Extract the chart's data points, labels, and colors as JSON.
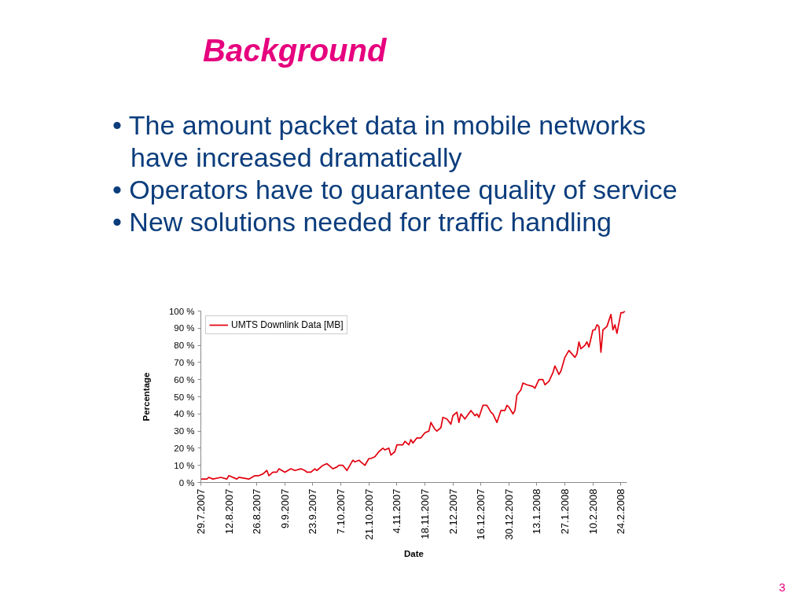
{
  "chart_data": {
    "type": "line",
    "title": "Background",
    "annotations": [
      "• The amount packet data in mobile networks\nhave increased dramatically",
      "• Operators have to guarantee quality of service",
      "• New solutions needed for traffic handling",
      "3"
    ],
    "xlabel": "Date",
    "ylabel": "Percentage",
    "x": [
      "2007-07-29",
      "2007-08-01",
      "2007-08-02",
      "2007-08-04",
      "2007-08-08",
      "2007-08-11",
      "2007-08-12",
      "2007-08-16",
      "2007-08-17",
      "2007-08-22",
      "2007-08-25",
      "2007-08-27",
      "2007-08-29",
      "2007-08-31",
      "2007-09-01",
      "2007-09-03",
      "2007-09-05",
      "2007-09-06",
      "2007-09-09",
      "2007-09-12",
      "2007-09-14",
      "2007-09-17",
      "2007-09-19",
      "2007-09-20",
      "2007-09-22",
      "2007-09-24",
      "2007-09-25",
      "2007-09-28",
      "2007-09-30",
      "2007-10-01",
      "2007-10-03",
      "2007-10-05",
      "2007-10-06",
      "2007-10-08",
      "2007-10-10",
      "2007-10-11",
      "2007-10-13",
      "2007-10-14",
      "2007-10-16",
      "2007-10-17",
      "2007-10-19",
      "2007-10-21",
      "2007-10-22",
      "2007-10-24",
      "2007-10-26",
      "2007-10-28",
      "2007-10-29",
      "2007-10-31",
      "2007-11-01",
      "2007-11-03",
      "2007-11-04",
      "2007-11-07",
      "2007-11-08",
      "2007-11-10",
      "2007-11-11",
      "2007-11-12",
      "2007-11-14",
      "2007-11-16",
      "2007-11-18",
      "2007-11-20",
      "2007-11-21",
      "2007-11-23",
      "2007-11-24",
      "2007-11-26",
      "2007-11-27",
      "2007-11-29",
      "2007-12-01",
      "2007-12-02",
      "2007-12-04",
      "2007-12-05",
      "2007-12-06",
      "2007-12-08",
      "2007-12-11",
      "2007-12-13",
      "2007-12-14",
      "2007-12-15",
      "2007-12-17",
      "2007-12-19",
      "2007-12-21",
      "2007-12-22",
      "2007-12-24",
      "2007-12-26",
      "2007-12-28",
      "2007-12-29",
      "2007-12-30",
      "2008-01-01",
      "2008-01-02",
      "2008-01-03",
      "2008-01-05",
      "2008-01-06",
      "2008-01-08",
      "2008-01-11",
      "2008-01-12",
      "2008-01-14",
      "2008-01-16",
      "2008-01-17",
      "2008-01-19",
      "2008-01-21",
      "2008-01-22",
      "2008-01-24",
      "2008-01-25",
      "2008-01-27",
      "2008-01-29",
      "2008-02-01",
      "2008-02-02",
      "2008-02-03",
      "2008-02-04",
      "2008-02-06",
      "2008-02-07",
      "2008-02-08",
      "2008-02-10",
      "2008-02-11",
      "2008-02-12",
      "2008-02-13",
      "2008-02-14",
      "2008-02-15",
      "2008-02-17",
      "2008-02-19",
      "2008-02-20",
      "2008-02-21",
      "2008-02-22",
      "2008-02-24",
      "2008-02-25",
      "2008-02-26"
    ],
    "series": [
      {
        "name": "UMTS Downlink Data [MB]",
        "color": "#e3000f",
        "values": [
          2,
          2,
          3,
          2,
          3,
          2,
          4,
          2,
          3,
          2,
          4,
          4,
          5,
          7,
          4,
          6,
          6,
          8,
          6,
          8,
          7,
          8,
          7,
          6,
          6,
          8,
          7,
          10,
          11,
          10,
          8,
          9,
          10,
          10,
          7,
          9,
          13,
          12,
          13,
          12,
          10,
          14,
          14,
          15,
          18,
          20,
          19,
          20,
          16,
          18,
          22,
          22,
          24,
          22,
          25,
          23,
          26,
          26,
          29,
          30,
          35,
          31,
          30,
          32,
          38,
          37,
          34,
          39,
          41,
          35,
          40,
          37,
          42,
          39,
          40,
          38,
          45,
          45,
          41,
          40,
          35,
          42,
          42,
          45,
          44,
          40,
          42,
          51,
          54,
          58,
          57,
          56,
          55,
          60,
          60,
          57,
          59,
          64,
          68,
          63,
          65,
          73,
          77,
          73,
          75,
          82,
          78,
          80,
          82,
          79,
          89,
          89,
          92,
          91,
          76,
          89,
          91,
          98,
          89,
          92,
          87,
          99,
          99,
          100
        ]
      }
    ],
    "xlim": [
      "2007-07-29",
      "2008-02-27"
    ],
    "xticks": [
      {
        "value": "2007-07-29",
        "label": "29.7.2007"
      },
      {
        "value": "2007-08-12",
        "label": "12.8.2007"
      },
      {
        "value": "2007-08-26",
        "label": "26.8.2007"
      },
      {
        "value": "2007-09-09",
        "label": "9.9.2007"
      },
      {
        "value": "2007-09-23",
        "label": "23.9.2007"
      },
      {
        "value": "2007-10-07",
        "label": "7.10.2007"
      },
      {
        "value": "2007-10-21",
        "label": "21.10.2007"
      },
      {
        "value": "2007-11-04",
        "label": "4.11.2007"
      },
      {
        "value": "2007-11-18",
        "label": "18.11.2007"
      },
      {
        "value": "2007-12-02",
        "label": "2.12.2007"
      },
      {
        "value": "2007-12-16",
        "label": "16.12.2007"
      },
      {
        "value": "2007-12-30",
        "label": "30.12.2007"
      },
      {
        "value": "2008-01-13",
        "label": "13.1.2008"
      },
      {
        "value": "2008-01-27",
        "label": "27.1.2008"
      },
      {
        "value": "2008-02-10",
        "label": "10.2.2008"
      },
      {
        "value": "2008-02-24",
        "label": "24.2.2008"
      }
    ],
    "ylim": [
      0,
      100
    ],
    "yticks": [
      {
        "value": 0,
        "label": "0 %"
      },
      {
        "value": 10,
        "label": "10 %"
      },
      {
        "value": 20,
        "label": "20 %"
      },
      {
        "value": 30,
        "label": "30 %"
      },
      {
        "value": 40,
        "label": "40 %"
      },
      {
        "value": 50,
        "label": "50 %"
      },
      {
        "value": 60,
        "label": "60 %"
      },
      {
        "value": 70,
        "label": "70 %"
      },
      {
        "value": 80,
        "label": "80 %"
      },
      {
        "value": 90,
        "label": "90 %"
      },
      {
        "value": 100,
        "label": "100 %"
      }
    ],
    "grid": false,
    "legend": "top left",
    "line_style": "solid"
  }
}
